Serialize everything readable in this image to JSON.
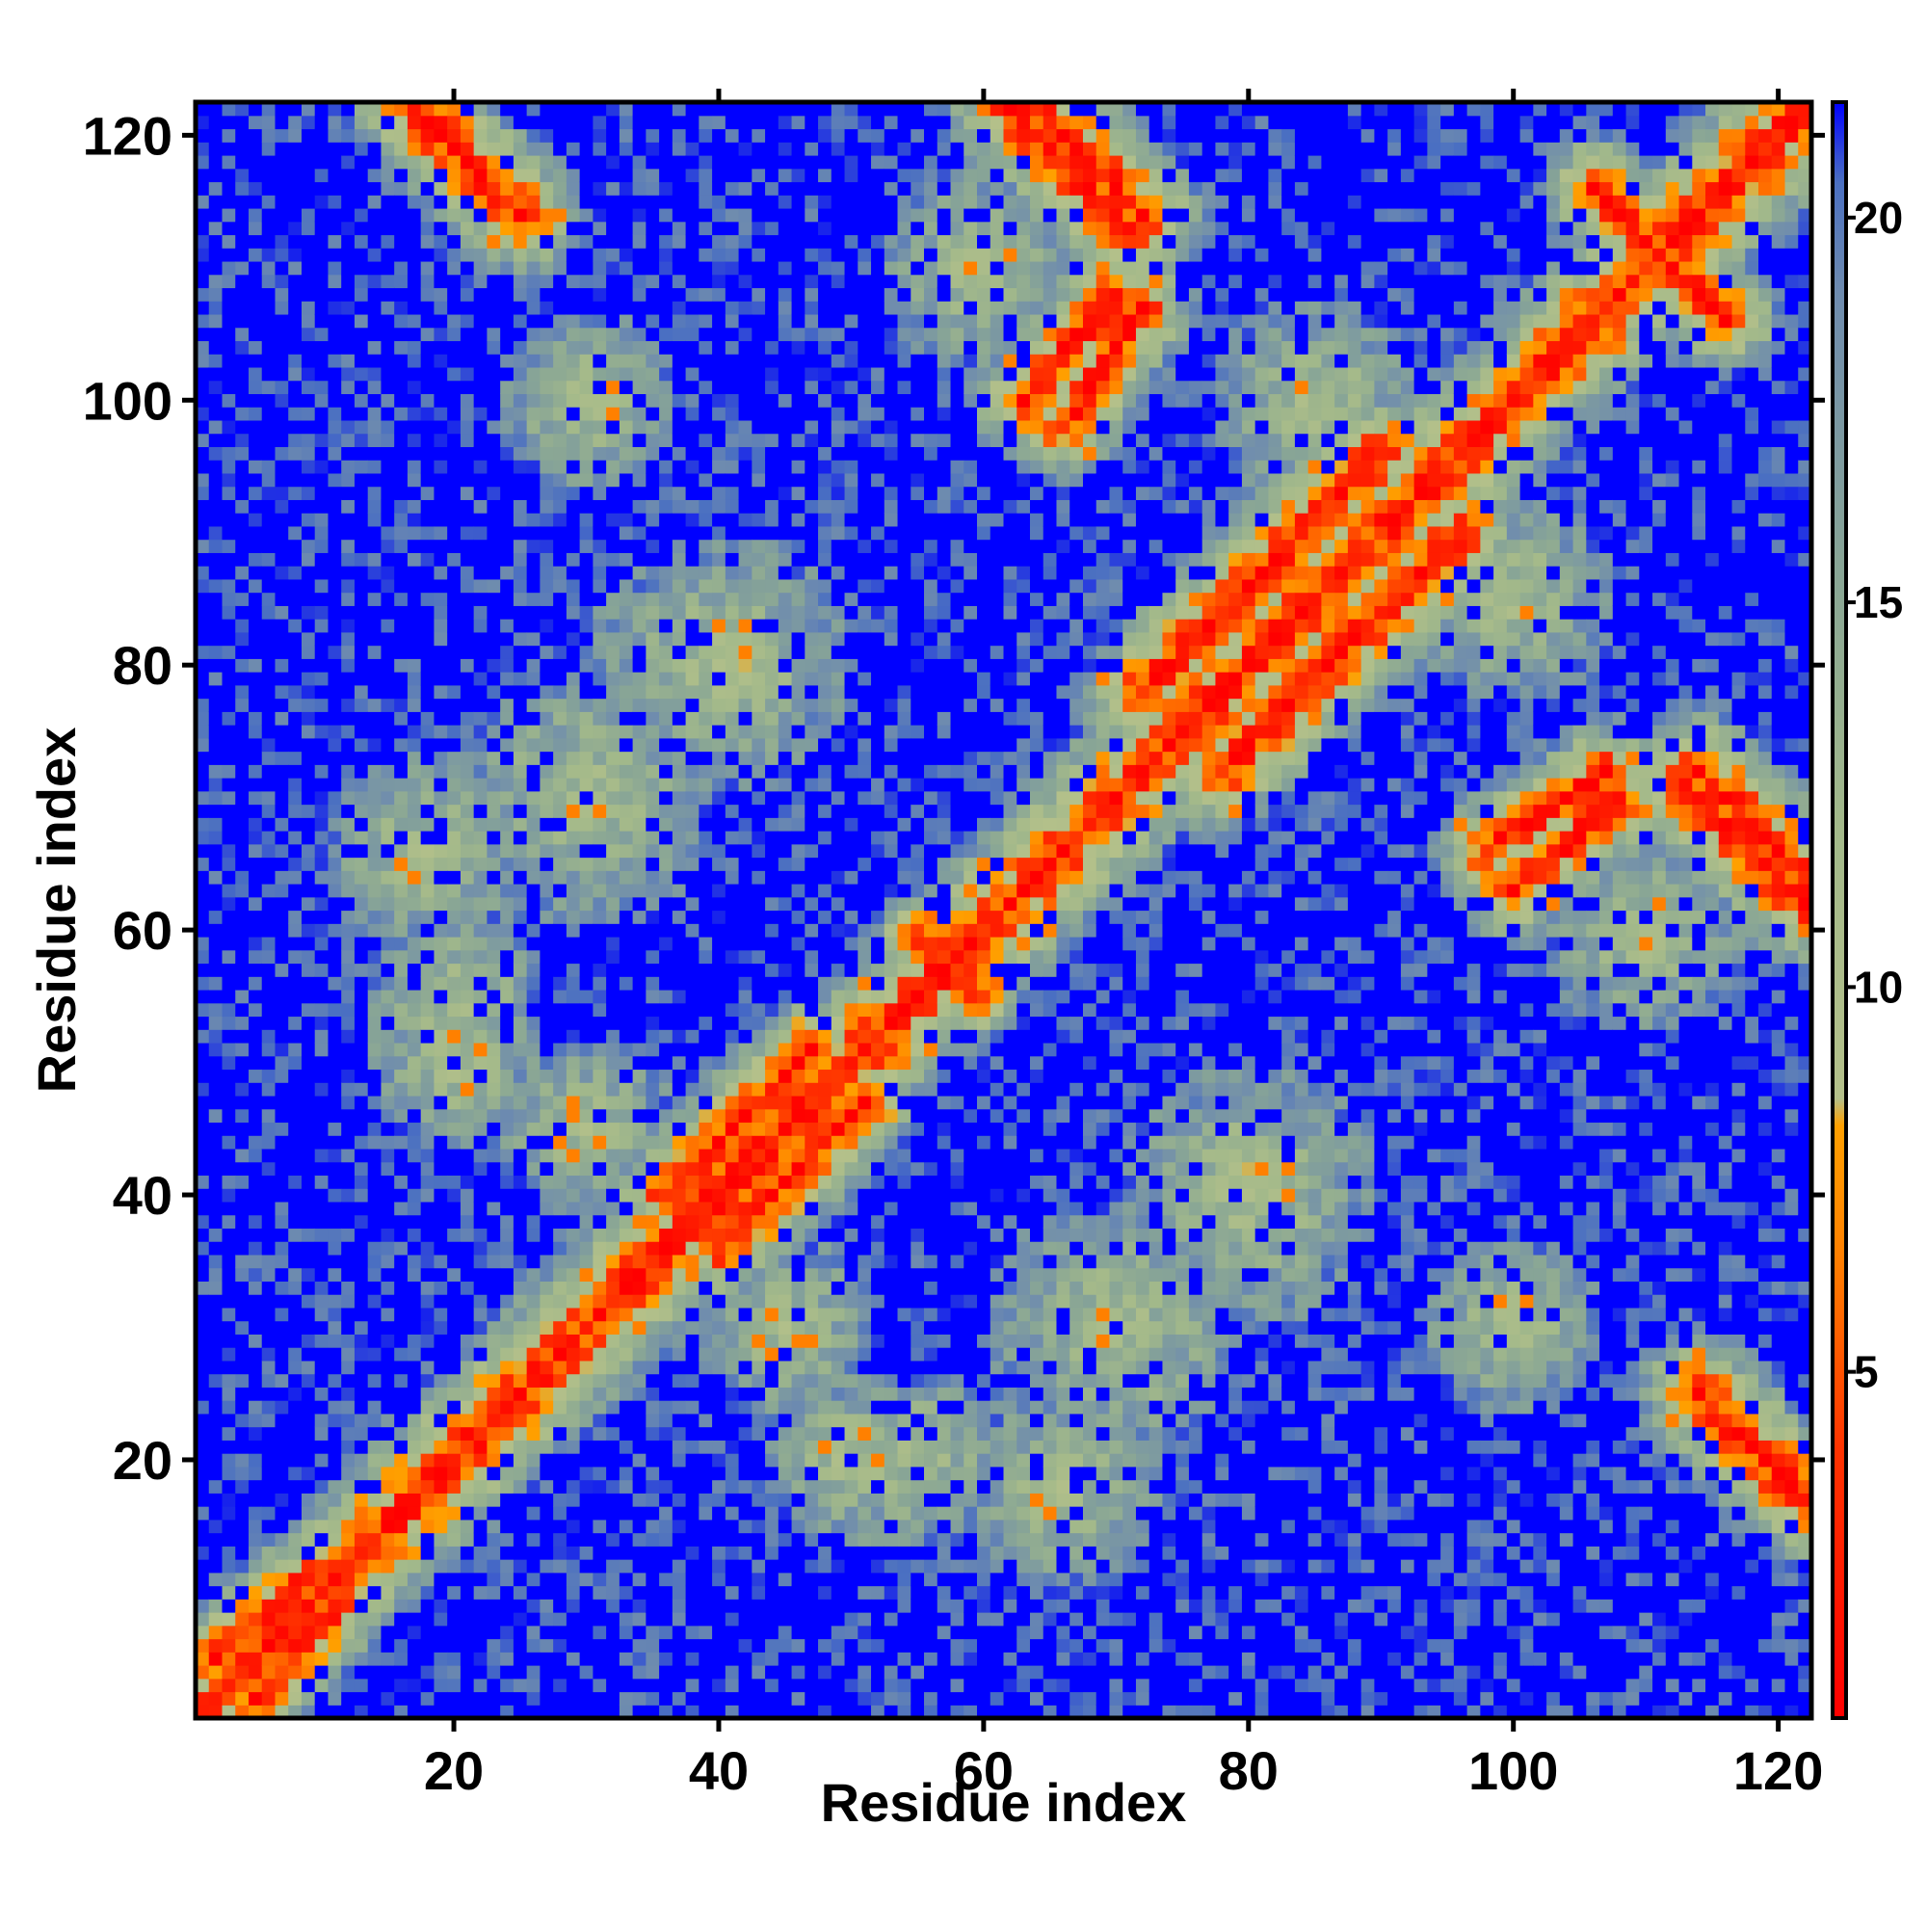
{
  "chart_data": {
    "type": "heatmap",
    "title": "",
    "xlabel": "Residue index",
    "ylabel": "Residue index",
    "n": 122,
    "xlim": [
      1,
      122
    ],
    "ylim": [
      1,
      122
    ],
    "x_ticks": [
      20,
      40,
      60,
      80,
      100,
      120
    ],
    "y_ticks": [
      20,
      40,
      60,
      80,
      100,
      120
    ],
    "colorbar": {
      "ticks": [
        5,
        10,
        15,
        20
      ],
      "range": [
        0.5,
        21.5
      ],
      "stops": [
        {
          "value": 0.5,
          "color": "#ff0000"
        },
        {
          "value": 4.0,
          "color": "#ff3300"
        },
        {
          "value": 6.5,
          "color": "#ff8000"
        },
        {
          "value": 8.2,
          "color": "#ffa000"
        },
        {
          "value": 8.5,
          "color": "#b4c08a"
        },
        {
          "value": 12.0,
          "color": "#a3b98a"
        },
        {
          "value": 15.5,
          "color": "#88a596"
        },
        {
          "value": 19.0,
          "color": "#6f8cae"
        },
        {
          "value": 20.5,
          "color": "#4a6fc2"
        },
        {
          "value": 21.5,
          "color": "#0000ff"
        }
      ]
    },
    "values_note_visible": "",
    "structure": {
      "diagonal_band_width": 3,
      "contact_segments": [
        {
          "start": [
            1,
            1
          ],
          "end": [
            122,
            122
          ],
          "strength": 1.0
        },
        {
          "start": [
            17,
            122
          ],
          "end": [
            25,
            114
          ],
          "strength": 0.7
        },
        {
          "start": [
            62,
            122
          ],
          "end": [
            71,
            113
          ],
          "strength": 0.7
        },
        {
          "start": [
            63,
            100
          ],
          "end": [
            70,
            108
          ],
          "strength": 0.6
        },
        {
          "start": [
            72,
            78
          ],
          "end": [
            90,
            96
          ],
          "strength": 0.7
        },
        {
          "start": [
            36,
            40
          ],
          "end": [
            47,
            51
          ],
          "strength": 0.6
        },
        {
          "start": [
            98,
            66
          ],
          "end": [
            107,
            72
          ],
          "strength": 0.6
        },
        {
          "start": [
            114,
            72
          ],
          "end": [
            122,
            64
          ],
          "strength": 0.7
        },
        {
          "start": [
            114,
            25
          ],
          "end": [
            122,
            17
          ],
          "strength": 0.7
        },
        {
          "start": [
            2,
            5
          ],
          "end": [
            9,
            11
          ],
          "strength": 0.6
        },
        {
          "start": [
            108,
            114
          ],
          "end": [
            116,
            106
          ],
          "strength": 0.6
        },
        {
          "start": [
            55,
            60
          ],
          "end": [
            60,
            55
          ],
          "strength": 0.5
        }
      ],
      "medium_regions": [
        {
          "center": [
            30,
            70
          ],
          "radius": 10
        },
        {
          "center": [
            80,
            40
          ],
          "radius": 10
        },
        {
          "center": [
            42,
            80
          ],
          "radius": 8
        },
        {
          "center": [
            66,
            18
          ],
          "radius": 8
        },
        {
          "center": [
            20,
            55
          ],
          "radius": 7
        },
        {
          "center": [
            100,
            30
          ],
          "radius": 7
        },
        {
          "center": [
            50,
            20
          ],
          "radius": 7
        },
        {
          "center": [
            30,
            45
          ],
          "radius": 7
        },
        {
          "center": [
            85,
            100
          ],
          "radius": 8
        },
        {
          "center": [
            110,
            60
          ],
          "radius": 8
        }
      ]
    }
  }
}
